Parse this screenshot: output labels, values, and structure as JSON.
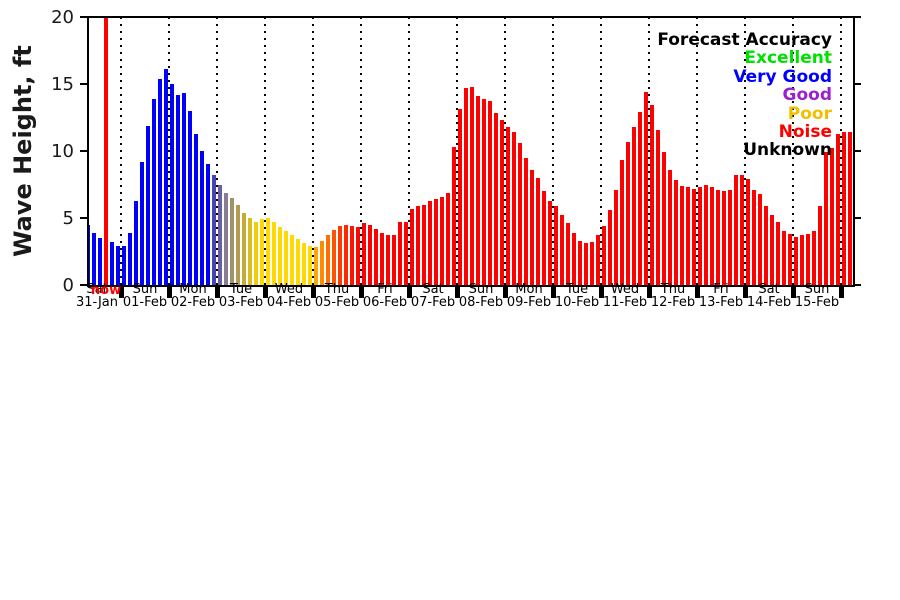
{
  "legend": {
    "title": "Forecast Accuracy",
    "entries": [
      {
        "label": "Excellent",
        "color": "#00e000"
      },
      {
        "label": "Very Good",
        "color": "#0000ff"
      },
      {
        "label": "Good",
        "color": "#9922cc"
      },
      {
        "label": "Poor",
        "color": "#f0c000"
      },
      {
        "label": "Noise",
        "color": "#ff0000"
      },
      {
        "label": "Unknown",
        "color": "#000000"
      }
    ]
  },
  "y_axis": {
    "label": "Wave Height, ft",
    "ticks": [
      0,
      5,
      10,
      15,
      20
    ]
  },
  "x_axis": {
    "days": [
      {
        "name": "Sat",
        "date": "31-Jan"
      },
      {
        "name": "Sun",
        "date": "01-Feb"
      },
      {
        "name": "Mon",
        "date": "02-Feb"
      },
      {
        "name": "Tue",
        "date": "03-Feb"
      },
      {
        "name": "Wed",
        "date": "04-Feb"
      },
      {
        "name": "Thu",
        "date": "05-Feb"
      },
      {
        "name": "Fri",
        "date": "06-Feb"
      },
      {
        "name": "Sat",
        "date": "07-Feb"
      },
      {
        "name": "Sun",
        "date": "08-Feb"
      },
      {
        "name": "Mon",
        "date": "09-Feb"
      },
      {
        "name": "Tue",
        "date": "10-Feb"
      },
      {
        "name": "Wed",
        "date": "11-Feb"
      },
      {
        "name": "Thu",
        "date": "12-Feb"
      },
      {
        "name": "Fri",
        "date": "13-Feb"
      },
      {
        "name": "Sat",
        "date": "14-Feb"
      },
      {
        "name": "Sun",
        "date": "15-Feb"
      }
    ]
  },
  "now_marker": {
    "label": "now",
    "color": "#ff0000",
    "bar_index": 3
  },
  "chart_data": {
    "type": "bar",
    "ylabel": "Wave Height, ft",
    "ylim": [
      0,
      20
    ],
    "interval_hours": 3,
    "grid": "vertical-dotted-daily",
    "legend_position": "upper right",
    "values": [
      4.5,
      3.9,
      3.5,
      3.4,
      3.2,
      2.9,
      2.9,
      3.9,
      6.3,
      9.2,
      11.9,
      13.9,
      15.4,
      16.1,
      15.0,
      14.2,
      14.3,
      13.0,
      11.3,
      10.0,
      9.0,
      8.2,
      7.5,
      6.9,
      6.5,
      6.0,
      5.4,
      5.0,
      4.7,
      4.9,
      5.0,
      4.7,
      4.3,
      4.0,
      3.7,
      3.4,
      3.1,
      2.9,
      2.8,
      3.3,
      3.7,
      4.1,
      4.4,
      4.5,
      4.4,
      4.3,
      4.6,
      4.5,
      4.2,
      3.9,
      3.7,
      3.7,
      4.7,
      4.7,
      5.7,
      5.9,
      6.0,
      6.3,
      6.4,
      6.6,
      6.9,
      10.3,
      13.1,
      14.7,
      14.8,
      14.1,
      13.9,
      13.7,
      12.8,
      12.3,
      11.8,
      11.4,
      10.6,
      9.5,
      8.6,
      8.0,
      7.0,
      6.3,
      5.9,
      5.2,
      4.6,
      3.9,
      3.3,
      3.1,
      3.2,
      3.7,
      4.4,
      5.6,
      7.1,
      9.3,
      10.7,
      11.8,
      12.9,
      14.4,
      13.4,
      11.6,
      9.9,
      8.6,
      7.8,
      7.4,
      7.3,
      7.2,
      7.3,
      7.5,
      7.3,
      7.1,
      7.0,
      7.1,
      8.2,
      8.2,
      7.9,
      7.1,
      6.8,
      5.9,
      5.2,
      4.7,
      4.0,
      3.8,
      3.6,
      3.7,
      3.8,
      4.0,
      5.9,
      9.9,
      10.2,
      11.3,
      11.4,
      11.4
    ],
    "colors": [
      "#0000ff",
      "#0000ff",
      "#0000ff",
      "#0000ff",
      "#0000ff",
      "#0000ff",
      "#0000ff",
      "#0000ff",
      "#0000ff",
      "#0000ff",
      "#0000ff",
      "#0000ff",
      "#0000ff",
      "#0000ff",
      "#0000ff",
      "#0000ff",
      "#0000ff",
      "#0000ff",
      "#0000ff",
      "#0000ff",
      "#0000ff",
      "#4743b2",
      "#6a5f9e",
      "#887d92",
      "#a2926a",
      "#b39c52",
      "#c6ab38",
      "#dcbd20",
      "#f0cd0a",
      "#ffd700",
      "#ffd900",
      "#ffd900",
      "#ffd900",
      "#ffd900",
      "#ffd900",
      "#ffd900",
      "#ffd900",
      "#ffd900",
      "#ffa500",
      "#ff8c00",
      "#ff7000",
      "#ff5400",
      "#ff3c00",
      "#ff2800",
      "#ff1400",
      "#ff0600",
      "#ff0000",
      "#ff0000",
      "#ff0000",
      "#ff0000",
      "#ff0000",
      "#ff0000",
      "#ff0000",
      "#ff0000",
      "#ff0000",
      "#ff0000",
      "#ff0000",
      "#ff0000",
      "#ff0000",
      "#ff0000",
      "#ff0000",
      "#ff0000",
      "#ff0000",
      "#ff0000",
      "#ff0000",
      "#ff0000",
      "#ff0000",
      "#ff0000",
      "#ff0000",
      "#ff0000",
      "#ff0000",
      "#ff0000",
      "#ff0000",
      "#ff0000",
      "#ff0000",
      "#ff0000",
      "#ff0000",
      "#ff0000",
      "#ff0000",
      "#ff0000",
      "#ff0000",
      "#ff0000",
      "#ff0000",
      "#ff0000",
      "#ff0000",
      "#ff0000",
      "#ff0000",
      "#ff0000",
      "#ff0000",
      "#ff0000",
      "#ff0000",
      "#ff0000",
      "#ff0000",
      "#ff0000",
      "#ff0000",
      "#ff0000",
      "#ff0000",
      "#ff0000",
      "#ff0000",
      "#ff0000",
      "#ff0000",
      "#ff0000",
      "#ff0000",
      "#ff0000",
      "#ff0000",
      "#ff0000",
      "#ff0000",
      "#ff0000",
      "#ff0000",
      "#ff0000",
      "#ff0000",
      "#ff0000",
      "#ff0000",
      "#ff0000",
      "#ff0000",
      "#ff0000",
      "#ff0000",
      "#ff0000",
      "#ff0000",
      "#ff0000",
      "#ff0000",
      "#ff0000",
      "#ff0000",
      "#ff0000",
      "#ff0000",
      "#ff0000",
      "#ff0000",
      "#ff0000"
    ]
  }
}
